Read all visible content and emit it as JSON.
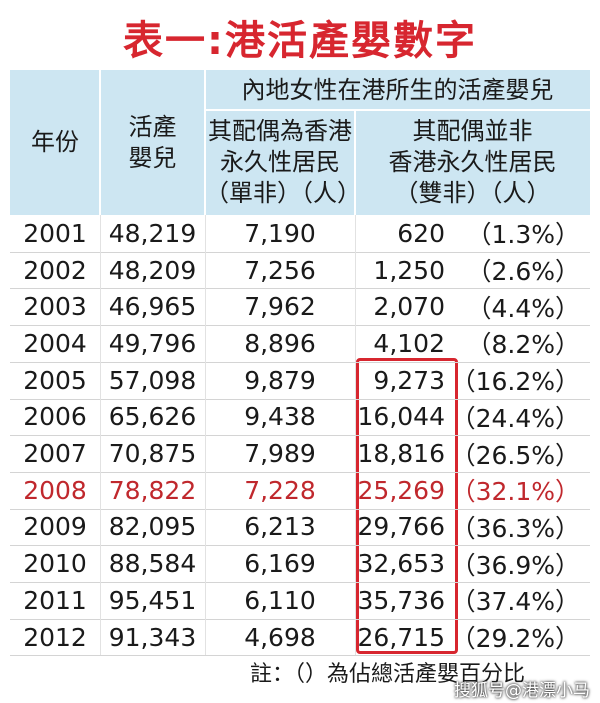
{
  "header": {
    "title": "表一:港活產嬰數字"
  },
  "table": {
    "columns": {
      "year": "年份",
      "births": [
        "活產",
        "嬰兒"
      ],
      "group": "內地女性在港所生的活產嬰兒",
      "single": [
        "其配偶為香港",
        "永久性居民",
        "（單非）（人）"
      ],
      "double": [
        "其配偶並非",
        "香港永久性居民",
        "（雙非）（人）"
      ]
    },
    "rows": [
      [
        "2001",
        "48,219",
        "7,190",
        "620",
        "（1.3%）"
      ],
      [
        "2002",
        "48,209",
        "7,256",
        "1,250",
        "（2.6%）"
      ],
      [
        "2003",
        "46,965",
        "7,962",
        "2,070",
        "（4.4%）"
      ],
      [
        "2004",
        "49,796",
        "8,896",
        "4,102",
        "（8.2%）"
      ],
      [
        "2005",
        "57,098",
        "9,879",
        "9,273",
        "（16.2%）"
      ],
      [
        "2006",
        "65,626",
        "9,438",
        "16,044",
        "（24.4%）"
      ],
      [
        "2007",
        "70,875",
        "7,989",
        "18,816",
        "（26.5%）"
      ],
      [
        "2008",
        "78,822",
        "7,228",
        "25,269",
        "（32.1%）"
      ],
      [
        "2009",
        "82,095",
        "6,213",
        "29,766",
        "（36.3%）"
      ],
      [
        "2010",
        "88,584",
        "6,169",
        "32,653",
        "（36.9%）"
      ],
      [
        "2011",
        "95,451",
        "6,110",
        "35,736",
        "（37.4%）"
      ],
      [
        "2012",
        "91,343",
        "4,698",
        "26,715",
        "（29.2%）"
      ]
    ]
  },
  "note": "註：（）為佔總活產嬰百分比",
  "watermark": "搜狐号@港漂小马"
}
